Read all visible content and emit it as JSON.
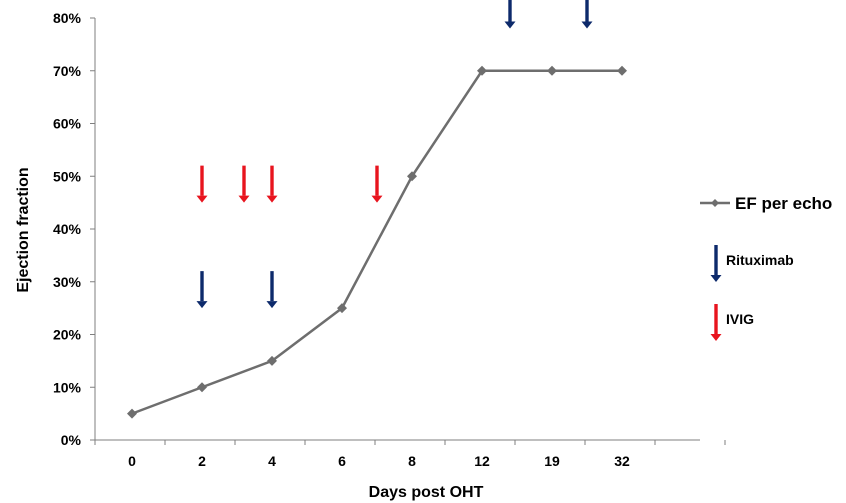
{
  "chart_data": {
    "type": "line",
    "title": "",
    "xlabel": "Days post OHT",
    "ylabel": "Ejection fraction",
    "categories": [
      "0",
      "2",
      "4",
      "6",
      "8",
      "12",
      "19",
      "32"
    ],
    "yticks": [
      "0%",
      "10%",
      "20%",
      "30%",
      "40%",
      "50%",
      "60%",
      "70%",
      "80%"
    ],
    "ylim": [
      0,
      80
    ],
    "grid": false,
    "legend_position": "right",
    "series": [
      {
        "name": "EF per echo",
        "values": [
          5,
          10,
          15,
          25,
          50,
          70,
          70,
          70
        ],
        "color": "#6e6e6e",
        "marker": "diamond"
      }
    ],
    "annotations": {
      "rituximab": {
        "label": "Rituximab",
        "color": "#0d2a6b",
        "x_positions": [
          1,
          2,
          5.4,
          6.5
        ],
        "y_levels": [
          25,
          25,
          78,
          78
        ]
      },
      "ivig": {
        "label": "IVIG",
        "color": "#e8141e",
        "x_positions": [
          1,
          1.6,
          2,
          3.5
        ],
        "y_levels": [
          45,
          45,
          45,
          45
        ]
      }
    }
  }
}
